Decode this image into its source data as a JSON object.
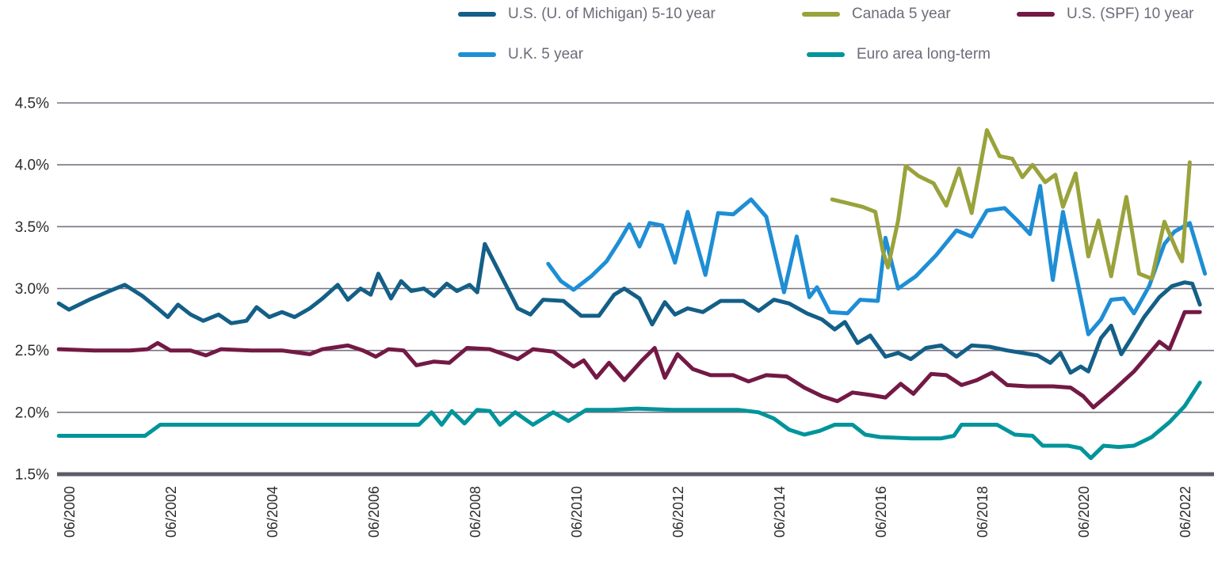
{
  "legend": {
    "items": [
      {
        "label": "U.S. (U. of Michigan) 5-10 year",
        "series": "us_michigan"
      },
      {
        "label": "Canada 5 year",
        "series": "canada"
      },
      {
        "label": "U.S. (SPF) 10 year",
        "series": "us_spf"
      },
      {
        "label": "U.K. 5 year",
        "series": "uk"
      },
      {
        "label": "Euro area long-term",
        "series": "euro"
      }
    ],
    "text_color": "#6F6A79"
  },
  "axes": {
    "tick_text_color": "#2D2B2E",
    "gridline_color": "#77737F",
    "baseline_color": "#5E5A66"
  },
  "chart_data": {
    "type": "line",
    "title": "",
    "xlabel": "",
    "ylabel": "",
    "grid": "horizontal",
    "legend_position": "top",
    "x_axis": {
      "unit": "decimal years since 06/2000",
      "tick_values": [
        0,
        2,
        4,
        6,
        8,
        10,
        12,
        14,
        16,
        18,
        20,
        22
      ],
      "tick_labels": [
        "06/2000",
        "06/2002",
        "06/2004",
        "06/2006",
        "06/2008",
        "06/2010",
        "06/2012",
        "06/2014",
        "06/2016",
        "06/2018",
        "06/2020",
        "06/2022"
      ],
      "range": [
        -0.25,
        22.6
      ]
    },
    "y_axis": {
      "tick_values": [
        4.5,
        4.0,
        3.5,
        3.0,
        2.5,
        2.0,
        1.5
      ],
      "tick_labels": [
        "4.5%",
        "4.0%",
        "3.5%",
        "3.0%",
        "2.5%",
        "2.0%",
        "1.5%"
      ],
      "ylim": [
        1.5,
        4.5
      ]
    },
    "series": [
      {
        "id": "euro",
        "name": "Euro area long-term",
        "color": "#00949B",
        "points": [
          [
            -0.2,
            1.81
          ],
          [
            0.6,
            1.81
          ],
          [
            1.5,
            1.81
          ],
          [
            1.8,
            1.9
          ],
          [
            3.0,
            1.9
          ],
          [
            4.5,
            1.9
          ],
          [
            6.0,
            1.9
          ],
          [
            6.9,
            1.9
          ],
          [
            7.15,
            2.0
          ],
          [
            7.35,
            1.9
          ],
          [
            7.55,
            2.01
          ],
          [
            7.8,
            1.91
          ],
          [
            8.05,
            2.02
          ],
          [
            8.3,
            2.01
          ],
          [
            8.5,
            1.9
          ],
          [
            8.8,
            2.0
          ],
          [
            9.15,
            1.9
          ],
          [
            9.55,
            2.0
          ],
          [
            9.85,
            1.93
          ],
          [
            10.2,
            2.02
          ],
          [
            10.7,
            2.02
          ],
          [
            11.2,
            2.03
          ],
          [
            11.9,
            2.02
          ],
          [
            12.6,
            2.02
          ],
          [
            13.2,
            2.02
          ],
          [
            13.6,
            2.0
          ],
          [
            13.9,
            1.95
          ],
          [
            14.2,
            1.86
          ],
          [
            14.5,
            1.82
          ],
          [
            14.8,
            1.85
          ],
          [
            15.1,
            1.9
          ],
          [
            15.45,
            1.9
          ],
          [
            15.7,
            1.82
          ],
          [
            16.0,
            1.8
          ],
          [
            16.6,
            1.79
          ],
          [
            17.2,
            1.79
          ],
          [
            17.45,
            1.81
          ],
          [
            17.6,
            1.9
          ],
          [
            18.3,
            1.9
          ],
          [
            18.65,
            1.82
          ],
          [
            19.0,
            1.81
          ],
          [
            19.2,
            1.73
          ],
          [
            19.7,
            1.73
          ],
          [
            19.95,
            1.71
          ],
          [
            20.15,
            1.63
          ],
          [
            20.4,
            1.73
          ],
          [
            20.7,
            1.72
          ],
          [
            21.0,
            1.73
          ],
          [
            21.35,
            1.8
          ],
          [
            21.7,
            1.92
          ],
          [
            22.0,
            2.05
          ],
          [
            22.3,
            2.24
          ]
        ]
      },
      {
        "id": "us_spf",
        "name": "U.S. (SPF) 10 year",
        "color": "#731945",
        "points": [
          [
            -0.2,
            2.51
          ],
          [
            0.5,
            2.5
          ],
          [
            1.2,
            2.5
          ],
          [
            1.55,
            2.51
          ],
          [
            1.75,
            2.56
          ],
          [
            2.0,
            2.5
          ],
          [
            2.4,
            2.5
          ],
          [
            2.7,
            2.46
          ],
          [
            3.0,
            2.51
          ],
          [
            3.6,
            2.5
          ],
          [
            4.2,
            2.5
          ],
          [
            4.75,
            2.47
          ],
          [
            5.0,
            2.51
          ],
          [
            5.5,
            2.54
          ],
          [
            5.8,
            2.5
          ],
          [
            6.05,
            2.45
          ],
          [
            6.3,
            2.51
          ],
          [
            6.6,
            2.5
          ],
          [
            6.85,
            2.38
          ],
          [
            7.2,
            2.41
          ],
          [
            7.5,
            2.4
          ],
          [
            7.85,
            2.52
          ],
          [
            8.3,
            2.51
          ],
          [
            8.85,
            2.43
          ],
          [
            9.15,
            2.51
          ],
          [
            9.55,
            2.49
          ],
          [
            9.95,
            2.37
          ],
          [
            10.15,
            2.42
          ],
          [
            10.4,
            2.28
          ],
          [
            10.65,
            2.4
          ],
          [
            10.95,
            2.26
          ],
          [
            11.3,
            2.42
          ],
          [
            11.55,
            2.52
          ],
          [
            11.75,
            2.28
          ],
          [
            12.0,
            2.47
          ],
          [
            12.3,
            2.35
          ],
          [
            12.65,
            2.3
          ],
          [
            13.1,
            2.3
          ],
          [
            13.4,
            2.25
          ],
          [
            13.75,
            2.3
          ],
          [
            14.15,
            2.29
          ],
          [
            14.5,
            2.2
          ],
          [
            14.85,
            2.13
          ],
          [
            15.15,
            2.09
          ],
          [
            15.45,
            2.16
          ],
          [
            15.8,
            2.14
          ],
          [
            16.1,
            2.12
          ],
          [
            16.4,
            2.23
          ],
          [
            16.65,
            2.15
          ],
          [
            17.0,
            2.31
          ],
          [
            17.3,
            2.3
          ],
          [
            17.6,
            2.22
          ],
          [
            17.9,
            2.26
          ],
          [
            18.2,
            2.32
          ],
          [
            18.5,
            2.22
          ],
          [
            18.9,
            2.21
          ],
          [
            19.4,
            2.21
          ],
          [
            19.75,
            2.2
          ],
          [
            20.0,
            2.13
          ],
          [
            20.2,
            2.04
          ],
          [
            20.6,
            2.18
          ],
          [
            21.0,
            2.33
          ],
          [
            21.5,
            2.57
          ],
          [
            21.7,
            2.51
          ],
          [
            22.0,
            2.81
          ],
          [
            22.3,
            2.81
          ]
        ]
      },
      {
        "id": "us_michigan",
        "name": "U.S. (U. of Michigan) 5-10 year",
        "color": "#145F87",
        "points": [
          [
            -0.2,
            2.88
          ],
          [
            0.0,
            2.83
          ],
          [
            0.4,
            2.91
          ],
          [
            0.8,
            2.98
          ],
          [
            1.1,
            3.03
          ],
          [
            1.45,
            2.94
          ],
          [
            1.75,
            2.84
          ],
          [
            1.95,
            2.77
          ],
          [
            2.15,
            2.87
          ],
          [
            2.4,
            2.79
          ],
          [
            2.65,
            2.74
          ],
          [
            2.95,
            2.79
          ],
          [
            3.2,
            2.72
          ],
          [
            3.5,
            2.74
          ],
          [
            3.7,
            2.85
          ],
          [
            3.95,
            2.77
          ],
          [
            4.2,
            2.81
          ],
          [
            4.45,
            2.77
          ],
          [
            4.75,
            2.84
          ],
          [
            5.0,
            2.92
          ],
          [
            5.3,
            3.03
          ],
          [
            5.5,
            2.91
          ],
          [
            5.75,
            3.0
          ],
          [
            5.95,
            2.95
          ],
          [
            6.1,
            3.12
          ],
          [
            6.35,
            2.92
          ],
          [
            6.55,
            3.06
          ],
          [
            6.75,
            2.98
          ],
          [
            7.0,
            3.0
          ],
          [
            7.2,
            2.94
          ],
          [
            7.45,
            3.04
          ],
          [
            7.65,
            2.98
          ],
          [
            7.9,
            3.03
          ],
          [
            8.05,
            2.97
          ],
          [
            8.2,
            3.36
          ],
          [
            8.55,
            3.08
          ],
          [
            8.85,
            2.84
          ],
          [
            9.1,
            2.79
          ],
          [
            9.35,
            2.91
          ],
          [
            9.75,
            2.9
          ],
          [
            10.1,
            2.78
          ],
          [
            10.45,
            2.78
          ],
          [
            10.75,
            2.95
          ],
          [
            10.95,
            3.0
          ],
          [
            11.25,
            2.92
          ],
          [
            11.5,
            2.71
          ],
          [
            11.75,
            2.89
          ],
          [
            11.95,
            2.79
          ],
          [
            12.2,
            2.84
          ],
          [
            12.5,
            2.81
          ],
          [
            12.85,
            2.9
          ],
          [
            13.3,
            2.9
          ],
          [
            13.6,
            2.82
          ],
          [
            13.9,
            2.91
          ],
          [
            14.2,
            2.88
          ],
          [
            14.55,
            2.8
          ],
          [
            14.85,
            2.75
          ],
          [
            15.1,
            2.67
          ],
          [
            15.3,
            2.73
          ],
          [
            15.55,
            2.56
          ],
          [
            15.8,
            2.62
          ],
          [
            16.1,
            2.45
          ],
          [
            16.35,
            2.48
          ],
          [
            16.6,
            2.43
          ],
          [
            16.9,
            2.52
          ],
          [
            17.2,
            2.54
          ],
          [
            17.5,
            2.45
          ],
          [
            17.8,
            2.54
          ],
          [
            18.15,
            2.53
          ],
          [
            18.5,
            2.5
          ],
          [
            18.8,
            2.48
          ],
          [
            19.1,
            2.46
          ],
          [
            19.35,
            2.4
          ],
          [
            19.55,
            2.48
          ],
          [
            19.75,
            2.32
          ],
          [
            19.95,
            2.37
          ],
          [
            20.1,
            2.33
          ],
          [
            20.35,
            2.6
          ],
          [
            20.55,
            2.7
          ],
          [
            20.75,
            2.47
          ],
          [
            20.95,
            2.6
          ],
          [
            21.2,
            2.77
          ],
          [
            21.5,
            2.93
          ],
          [
            21.75,
            3.02
          ],
          [
            22.0,
            3.05
          ],
          [
            22.15,
            3.04
          ],
          [
            22.3,
            2.87
          ]
        ]
      },
      {
        "id": "uk",
        "name": "U.K. 5 year",
        "color": "#1E8ED5",
        "points": [
          [
            9.45,
            3.2
          ],
          [
            9.7,
            3.06
          ],
          [
            9.95,
            2.99
          ],
          [
            10.3,
            3.1
          ],
          [
            10.6,
            3.22
          ],
          [
            10.85,
            3.38
          ],
          [
            11.05,
            3.52
          ],
          [
            11.25,
            3.34
          ],
          [
            11.45,
            3.53
          ],
          [
            11.7,
            3.51
          ],
          [
            11.95,
            3.21
          ],
          [
            12.2,
            3.62
          ],
          [
            12.55,
            3.11
          ],
          [
            12.8,
            3.61
          ],
          [
            13.1,
            3.6
          ],
          [
            13.45,
            3.72
          ],
          [
            13.75,
            3.58
          ],
          [
            14.1,
            2.97
          ],
          [
            14.35,
            3.42
          ],
          [
            14.6,
            2.93
          ],
          [
            14.75,
            3.01
          ],
          [
            15.0,
            2.81
          ],
          [
            15.35,
            2.8
          ],
          [
            15.6,
            2.91
          ],
          [
            15.95,
            2.9
          ],
          [
            16.1,
            3.41
          ],
          [
            16.35,
            3.0
          ],
          [
            16.7,
            3.1
          ],
          [
            17.1,
            3.27
          ],
          [
            17.5,
            3.47
          ],
          [
            17.8,
            3.42
          ],
          [
            18.1,
            3.63
          ],
          [
            18.45,
            3.65
          ],
          [
            18.7,
            3.55
          ],
          [
            18.95,
            3.44
          ],
          [
            19.15,
            3.83
          ],
          [
            19.4,
            3.07
          ],
          [
            19.6,
            3.62
          ],
          [
            20.1,
            2.63
          ],
          [
            20.35,
            2.75
          ],
          [
            20.55,
            2.91
          ],
          [
            20.8,
            2.92
          ],
          [
            21.0,
            2.8
          ],
          [
            21.3,
            3.02
          ],
          [
            21.6,
            3.36
          ],
          [
            21.8,
            3.46
          ],
          [
            22.1,
            3.53
          ],
          [
            22.4,
            3.12
          ]
        ]
      },
      {
        "id": "canada",
        "name": "Canada 5 year",
        "color": "#9AA23C",
        "points": [
          [
            15.05,
            3.72
          ],
          [
            15.35,
            3.69
          ],
          [
            15.65,
            3.66
          ],
          [
            15.9,
            3.62
          ],
          [
            16.05,
            3.3
          ],
          [
            16.15,
            3.17
          ],
          [
            16.35,
            3.55
          ],
          [
            16.5,
            3.99
          ],
          [
            16.75,
            3.91
          ],
          [
            17.05,
            3.85
          ],
          [
            17.3,
            3.67
          ],
          [
            17.55,
            3.97
          ],
          [
            17.8,
            3.61
          ],
          [
            18.1,
            4.28
          ],
          [
            18.35,
            4.07
          ],
          [
            18.6,
            4.05
          ],
          [
            18.8,
            3.9
          ],
          [
            19.0,
            4.0
          ],
          [
            19.25,
            3.86
          ],
          [
            19.45,
            3.92
          ],
          [
            19.6,
            3.66
          ],
          [
            19.85,
            3.93
          ],
          [
            20.1,
            3.26
          ],
          [
            20.3,
            3.55
          ],
          [
            20.55,
            3.1
          ],
          [
            20.85,
            3.74
          ],
          [
            21.1,
            3.12
          ],
          [
            21.35,
            3.08
          ],
          [
            21.6,
            3.54
          ],
          [
            21.85,
            3.3
          ],
          [
            21.95,
            3.22
          ],
          [
            22.1,
            4.02
          ]
        ]
      }
    ]
  }
}
